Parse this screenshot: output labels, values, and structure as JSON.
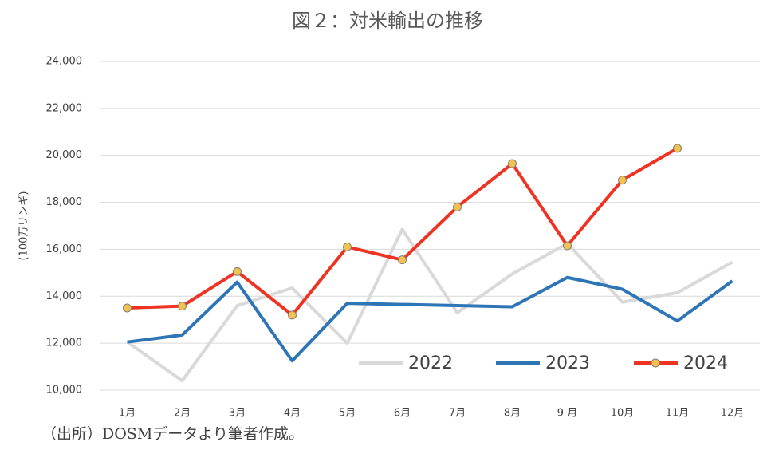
{
  "chart_data": {
    "type": "line",
    "title": "図２：対米輸出の推移",
    "y_label": "(100万リンギ)",
    "note": "（出所）DOSMデータより筆者作成。",
    "categories": [
      "1月",
      "2月",
      "3月",
      "4月",
      "5月",
      "6月",
      "7月",
      "8月",
      "9 月",
      "10月",
      "11月",
      "12月"
    ],
    "series": [
      {
        "name": "2022",
        "color": "#d9d9d9",
        "markers": false,
        "values": [
          12050,
          10400,
          13600,
          14350,
          12000,
          16850,
          13300,
          14950,
          16250,
          13750,
          14150,
          15450
        ]
      },
      {
        "name": "2023",
        "color": "#2e75b6",
        "markers": false,
        "values": [
          12050,
          12350,
          14600,
          11250,
          13700,
          13650,
          13600,
          13550,
          14800,
          14300,
          12950,
          14650
        ]
      },
      {
        "name": "2024",
        "color": "#ee3322",
        "markers": true,
        "marker_color": "#f2c14e",
        "values": [
          13500,
          13580,
          15050,
          13200,
          16100,
          15550,
          17800,
          19650,
          16150,
          18950,
          20300,
          null
        ]
      }
    ],
    "ylim": [
      10000,
      24000
    ],
    "yticks": [
      {
        "value": 10000,
        "label": "10,000"
      },
      {
        "value": 12000,
        "label": "12,000"
      },
      {
        "value": 14000,
        "label": "14,000"
      },
      {
        "value": 16000,
        "label": "16,000"
      },
      {
        "value": 18000,
        "label": "18,000"
      },
      {
        "value": 20000,
        "label": "20,000"
      },
      {
        "value": 22000,
        "label": "22,000"
      },
      {
        "value": 24000,
        "label": "24,000"
      }
    ],
    "grid": true,
    "legend": "lower-right"
  }
}
